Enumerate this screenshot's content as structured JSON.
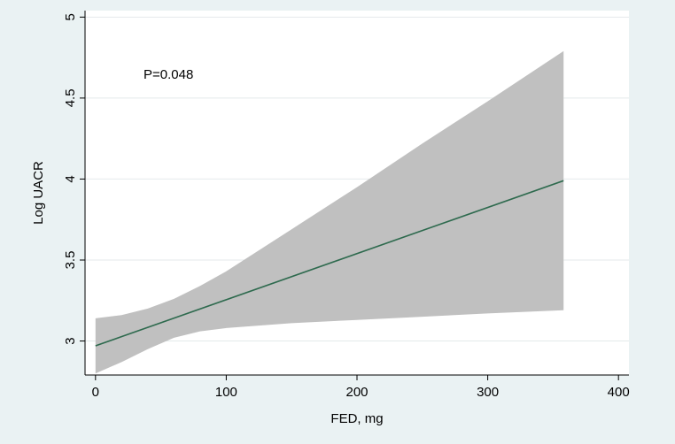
{
  "chart_data": {
    "type": "line",
    "title": "",
    "xlabel": "FED, mg",
    "ylabel": "Log UACR",
    "xlim": [
      -8,
      408
    ],
    "ylim": [
      2.79,
      5.04
    ],
    "xticks": [
      0,
      100,
      200,
      300,
      400
    ],
    "yticks": [
      3,
      3.5,
      4,
      4.5,
      5
    ],
    "xtick_labels": [
      "0",
      "100",
      "200",
      "300",
      "400"
    ],
    "ytick_labels": [
      "3",
      "3.5",
      "4",
      "4.5",
      "5"
    ],
    "grid": "horizontal",
    "annotation": "P=0.048",
    "colors": {
      "background": "#eaf2f3",
      "plot_area": "#ffffff",
      "band": "#c0c0c0",
      "line": "#2e6a4e",
      "grid": "#e4eaeb"
    },
    "series": [
      {
        "role": "fitted",
        "x": [
          0,
          358
        ],
        "y": [
          2.97,
          3.99
        ]
      }
    ],
    "confidence_band": {
      "x": [
        0,
        20,
        40,
        60,
        80,
        100,
        150,
        200,
        250,
        300,
        358
      ],
      "upper": [
        3.14,
        3.16,
        3.2,
        3.26,
        3.34,
        3.43,
        3.69,
        3.95,
        4.22,
        4.48,
        4.79
      ],
      "lower": [
        2.8,
        2.87,
        2.95,
        3.02,
        3.06,
        3.08,
        3.11,
        3.13,
        3.15,
        3.17,
        3.19
      ]
    }
  }
}
